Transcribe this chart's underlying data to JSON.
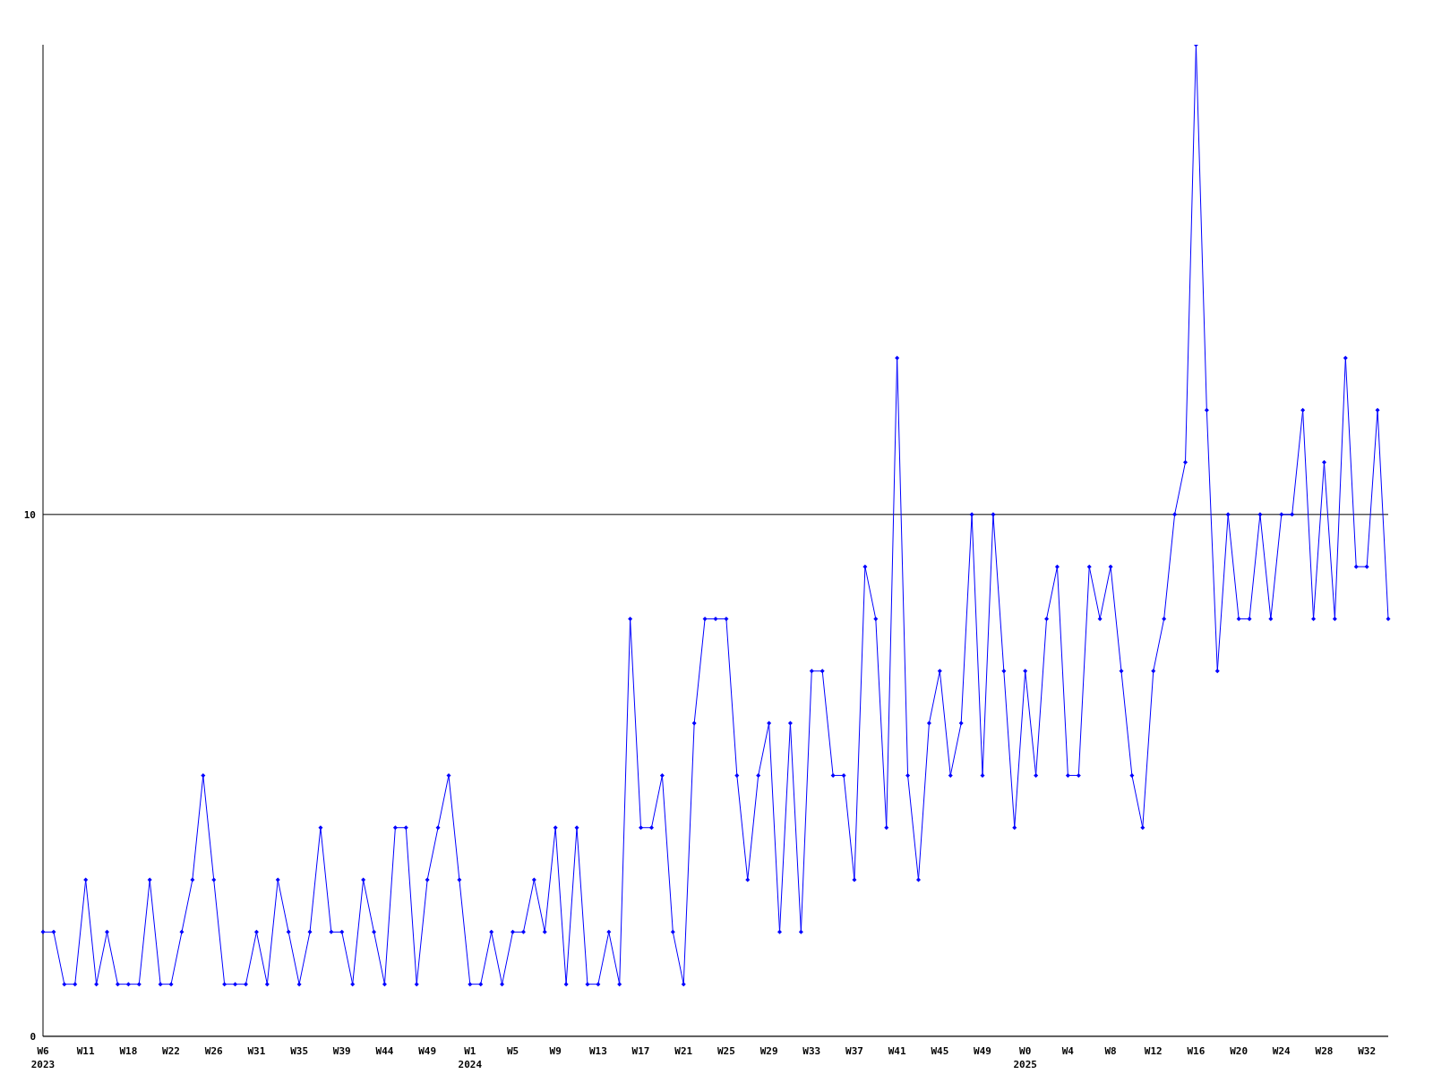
{
  "chart_data": {
    "type": "line",
    "categories": [
      "W6\n2023",
      null,
      null,
      null,
      "W11",
      null,
      null,
      null,
      "W18",
      null,
      null,
      null,
      "W22",
      null,
      null,
      null,
      "W26",
      null,
      null,
      null,
      "W31",
      null,
      null,
      null,
      "W35",
      null,
      null,
      null,
      "W39",
      null,
      null,
      null,
      "W44",
      null,
      null,
      null,
      "W49",
      null,
      null,
      null,
      "W1\n2024",
      null,
      null,
      null,
      "W5",
      null,
      null,
      null,
      "W9",
      null,
      null,
      null,
      "W13",
      null,
      null,
      null,
      "W17",
      null,
      null,
      null,
      "W21",
      null,
      null,
      null,
      "W25",
      null,
      null,
      null,
      "W29",
      null,
      null,
      null,
      "W33",
      null,
      null,
      null,
      "W37",
      null,
      null,
      null,
      "W41",
      null,
      null,
      null,
      "W45",
      null,
      null,
      null,
      "W49",
      null,
      null,
      null,
      "W0\n2025",
      null,
      null,
      null,
      "W4",
      null,
      null,
      null,
      "W8",
      null,
      null,
      null,
      "W12",
      null,
      null,
      null,
      "W16",
      null,
      null,
      null,
      "W20",
      null,
      null,
      null,
      "W24",
      null,
      null,
      null,
      "W28",
      null,
      null,
      null,
      "W32",
      null,
      null
    ],
    "series": [
      {
        "color": "#0000ff",
        "values": [
          2,
          2,
          1,
          1,
          3,
          1,
          2,
          1,
          1,
          1,
          3,
          1,
          1,
          2,
          3,
          5,
          3,
          1,
          1,
          1,
          2,
          1,
          3,
          2,
          1,
          2,
          4,
          2,
          2,
          1,
          3,
          2,
          1,
          4,
          4,
          1,
          3,
          4,
          5,
          3,
          1,
          1,
          2,
          1,
          2,
          2,
          3,
          2,
          4,
          1,
          4,
          1,
          1,
          2,
          1,
          8,
          4,
          4,
          5,
          2,
          1,
          6,
          8,
          8,
          8,
          5,
          3,
          5,
          6,
          2,
          6,
          2,
          7,
          7,
          5,
          5,
          3,
          9,
          8,
          4,
          13,
          5,
          3,
          6,
          7,
          5,
          6,
          10,
          5,
          10,
          7,
          4,
          7,
          5,
          8,
          9,
          5,
          5,
          9,
          8,
          9,
          7,
          5,
          4,
          7,
          8,
          10,
          11,
          19,
          12,
          7,
          10,
          8,
          8,
          10,
          8,
          10,
          10,
          12,
          8,
          11,
          8,
          13,
          9,
          9,
          12,
          8
        ]
      }
    ],
    "ylim": [
      0,
      19
    ],
    "yticks": [
      0,
      10
    ],
    "grid": "y",
    "marker": "diamond",
    "line_style": "solid"
  }
}
